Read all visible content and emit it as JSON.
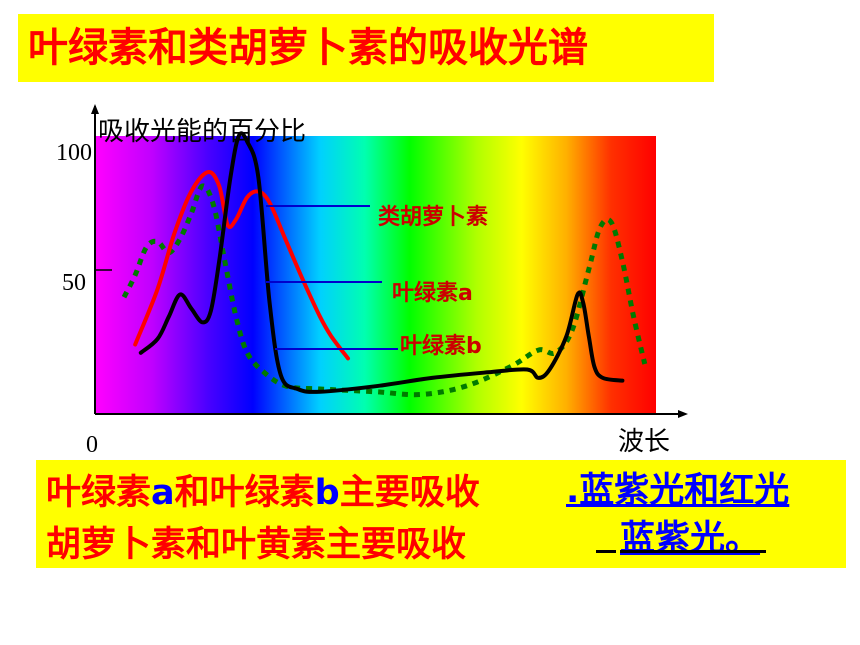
{
  "title": "叶绿素和类胡萝卜素的吸收光谱",
  "chart_data": {
    "type": "line",
    "ylabel": "吸收光能的百分比",
    "xlabel": "波长",
    "origin_label": "0",
    "y_ticks": [
      "100",
      "50"
    ],
    "ylim": [
      0,
      100
    ],
    "xlim": [
      0,
      100
    ],
    "series": [
      {
        "name": "类胡萝卜素",
        "color": "#ff0000",
        "style": "solid",
        "x": [
          7,
          11,
          14,
          17,
          20,
          22,
          23.5,
          25,
          27,
          29,
          31,
          34,
          37,
          40,
          42,
          45
        ],
        "y": [
          25,
          45,
          65,
          80,
          87,
          82,
          68,
          70,
          78,
          80,
          76,
          62,
          48,
          35,
          28,
          20
        ]
      },
      {
        "name": "叶绿素a",
        "color": "#000000",
        "style": "solid",
        "x": [
          8,
          11,
          13,
          15,
          17,
          19,
          20.5,
          22,
          24,
          25.5,
          27,
          29,
          31,
          33,
          36,
          40,
          50,
          60,
          70,
          77,
          79,
          81,
          84,
          86,
          87,
          88,
          89,
          90.5,
          94
        ],
        "y": [
          22,
          27,
          35,
          43,
          38,
          33,
          37,
          55,
          85,
          100,
          98,
          85,
          40,
          14,
          9,
          8,
          10,
          13,
          15,
          16,
          13,
          16,
          28,
          43,
          40,
          28,
          17,
          13,
          12
        ]
      },
      {
        "name": "叶绿素b",
        "color": "#007a00",
        "style": "dotted",
        "x": [
          5,
          7,
          9,
          11,
          13,
          15,
          17,
          19,
          21,
          23,
          25,
          27,
          30,
          34,
          40,
          50,
          58,
          66,
          74,
          79,
          82,
          85,
          88,
          90,
          92,
          94,
          96,
          98
        ],
        "y": [
          42,
          50,
          60,
          62,
          58,
          63,
          72,
          82,
          75,
          55,
          35,
          22,
          15,
          10,
          9,
          8,
          7,
          10,
          17,
          23,
          22,
          30,
          52,
          67,
          69,
          55,
          35,
          18
        ]
      }
    ]
  },
  "summary": {
    "line1_name_a": "叶绿素",
    "line1_a": "a",
    "line1_mid": "和叶绿素",
    "line1_b": "b",
    "line1_end": "主要吸收",
    "line1_answer": ".蓝紫光和红光",
    "line2_text": "胡萝卜素和叶黄素主要吸收",
    "line2_answer": "蓝紫光",
    "line2_end": "。"
  }
}
